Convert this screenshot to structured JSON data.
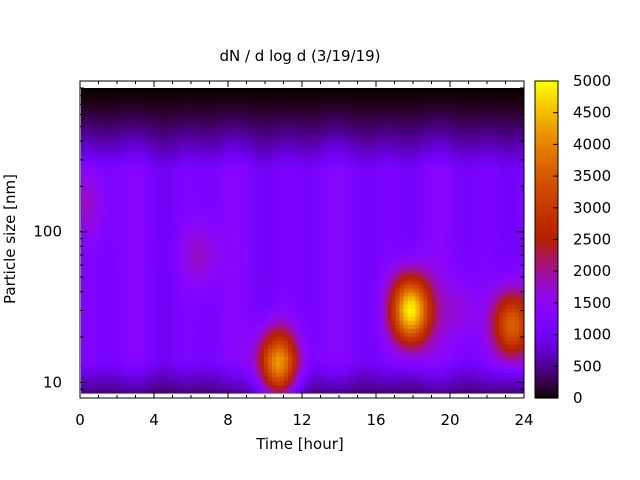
{
  "chart_data": {
    "type": "heatmap",
    "title": "dN / d log d (3/19/19)",
    "xlabel": "Time [hour]",
    "ylabel": "Particle size [nm]",
    "x_range": [
      0,
      24
    ],
    "x_ticks": [
      0,
      4,
      8,
      12,
      16,
      20,
      24
    ],
    "y_scale": "log",
    "y_range": [
      8.5,
      900
    ],
    "y_ticks": [
      10,
      100
    ],
    "colorbar": {
      "range": [
        0,
        5000
      ],
      "ticks": [
        0,
        500,
        1000,
        1500,
        2000,
        2500,
        3000,
        3500,
        4000,
        4500,
        5000
      ],
      "colormap": "gnuplot (black-blue-purple-red-orange-yellow)"
    },
    "background_level": 1400,
    "features": [
      {
        "time_h": 10.7,
        "size_nm": 13,
        "value": 4000
      },
      {
        "time_h": 17.9,
        "size_nm": 30,
        "value": 4700
      },
      {
        "time_h": 23.4,
        "size_nm": 24,
        "value": 3400
      },
      {
        "time_h": 6.5,
        "size_nm": 70,
        "value": 2100
      },
      {
        "time_h": 20.6,
        "size_nm": 30,
        "value": 1900
      },
      {
        "time_h": 0.3,
        "size_nm": 150,
        "value": 1900
      }
    ]
  }
}
